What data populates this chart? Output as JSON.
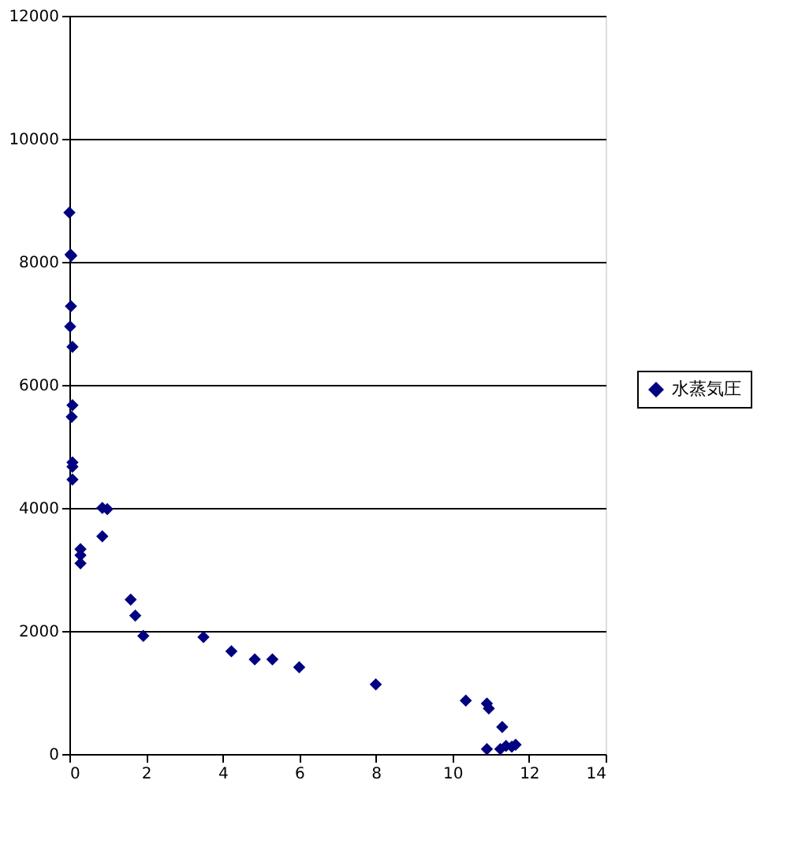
{
  "chart_data": {
    "type": "scatter",
    "marker": "diamond",
    "grid": "y",
    "legend": "right",
    "x": [
      0.0,
      0.03,
      0.05,
      0.04,
      0.02,
      0.08,
      0.08,
      0.06,
      0.08,
      0.08,
      0.08,
      0.86,
      0.99,
      0.86,
      0.29,
      0.29,
      0.29,
      1.6,
      1.72,
      1.93,
      3.5,
      4.23,
      4.84,
      5.3,
      6.0,
      8.0,
      10.35,
      10.9,
      10.95,
      11.3,
      10.9,
      11.25,
      11.4,
      11.65,
      11.55
    ],
    "series": [
      {
        "name": "水蒸気圧",
        "color": "#000080",
        "values": [
          8800,
          8120,
          8100,
          7280,
          6950,
          6620,
          5670,
          5480,
          4740,
          4670,
          4460,
          4000,
          3980,
          3540,
          3330,
          3230,
          3100,
          2510,
          2250,
          1920,
          1900,
          1670,
          1540,
          1540,
          1410,
          1130,
          870,
          820,
          740,
          440,
          80,
          80,
          130,
          150,
          120
        ]
      }
    ],
    "xlim": [
      0,
      14
    ],
    "xticks": [
      0,
      2,
      4,
      6,
      8,
      10,
      12,
      14
    ],
    "ylim": [
      0,
      12000
    ],
    "yticks": [
      0,
      2000,
      4000,
      6000,
      8000,
      10000,
      12000
    ]
  }
}
